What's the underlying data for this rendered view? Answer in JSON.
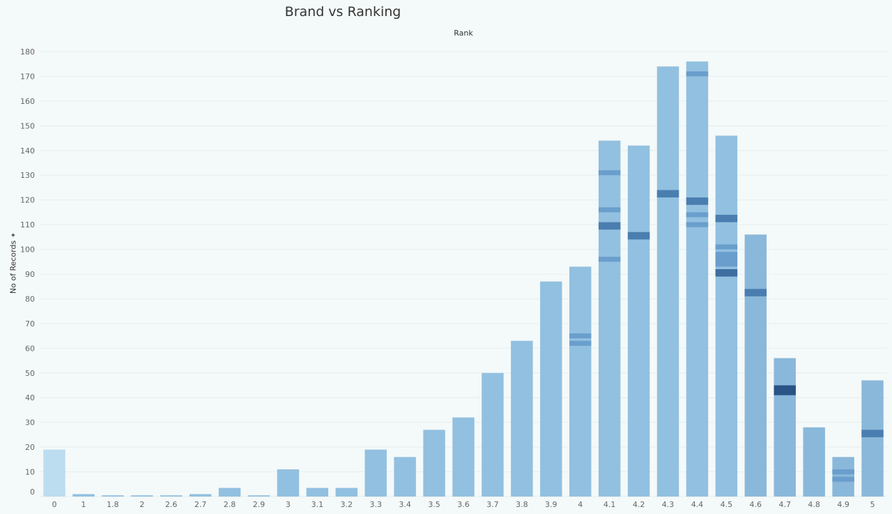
{
  "chart_data": {
    "type": "bar",
    "title": "Brand vs Ranking",
    "xlabel": "Rank",
    "ylabel": "No of Records",
    "ylabel_sort_glyph": "✦",
    "ylim": [
      0,
      180
    ],
    "yticks": [
      0,
      10,
      20,
      30,
      40,
      50,
      60,
      70,
      80,
      90,
      100,
      110,
      120,
      130,
      140,
      150,
      160,
      170,
      180
    ],
    "grid": "horizontal",
    "categories": [
      "0",
      "1",
      "1.8",
      "2",
      "2.6",
      "2.7",
      "2.8",
      "2.9",
      "3",
      "3.1",
      "3.2",
      "3.3",
      "3.4",
      "3.5",
      "3.6",
      "3.7",
      "3.8",
      "3.9",
      "4",
      "4.1",
      "4.2",
      "4.3",
      "4.4",
      "4.5",
      "4.6",
      "4.7",
      "4.8",
      "4.9",
      "5"
    ],
    "values": [
      19,
      1,
      0.5,
      0.5,
      0.5,
      1,
      3.5,
      0.5,
      11,
      3.5,
      3.5,
      19,
      16,
      27,
      32,
      50,
      63,
      87,
      93,
      144,
      142,
      174,
      176,
      146,
      106,
      56,
      28,
      16,
      47
    ],
    "segments": [
      [],
      [],
      [],
      [],
      [],
      [],
      [],
      [],
      [],
      [],
      [],
      [],
      [],
      [],
      [],
      [],
      [],
      [],
      [
        {
          "from": 61,
          "to": 63,
          "shade": "mid"
        },
        {
          "from": 64,
          "to": 66,
          "shade": "mid"
        }
      ],
      [
        {
          "from": 95,
          "to": 97,
          "shade": "mid"
        },
        {
          "from": 108,
          "to": 111,
          "shade": "dark"
        },
        {
          "from": 115,
          "to": 117,
          "shade": "mid"
        },
        {
          "from": 130,
          "to": 132,
          "shade": "mid"
        }
      ],
      [
        {
          "from": 104,
          "to": 107,
          "shade": "dark"
        }
      ],
      [
        {
          "from": 121,
          "to": 124,
          "shade": "dark"
        }
      ],
      [
        {
          "from": 109,
          "to": 111,
          "shade": "mid"
        },
        {
          "from": 113,
          "to": 115,
          "shade": "mid"
        },
        {
          "from": 118,
          "to": 121,
          "shade": "dark"
        },
        {
          "from": 170,
          "to": 172,
          "shade": "mid"
        }
      ],
      [
        {
          "from": 89,
          "to": 92,
          "shade": "darker"
        },
        {
          "from": 93,
          "to": 99,
          "shade": "mid"
        },
        {
          "from": 100,
          "to": 102,
          "shade": "mid"
        },
        {
          "from": 111,
          "to": 114,
          "shade": "dark"
        }
      ],
      [
        {
          "from": 81,
          "to": 84,
          "shade": "dark"
        }
      ],
      [
        {
          "from": 41,
          "to": 45,
          "shade": "darkest"
        }
      ],
      [],
      [
        {
          "from": 6,
          "to": 8,
          "shade": "mid"
        },
        {
          "from": 9,
          "to": 11,
          "shade": "mid"
        }
      ],
      [
        {
          "from": 24,
          "to": 27,
          "shade": "dark"
        }
      ]
    ],
    "colors": {
      "bar_light": "#bcdcf0",
      "bar_base": "#92c0e0",
      "bar_deep": "#8ab8da",
      "mid": "#6a9ecc",
      "dark": "#4a7eb0",
      "darker": "#3d6e9f",
      "darkest": "#2a5485",
      "grid": "#e6eeee",
      "axis_text": "#666666"
    }
  }
}
